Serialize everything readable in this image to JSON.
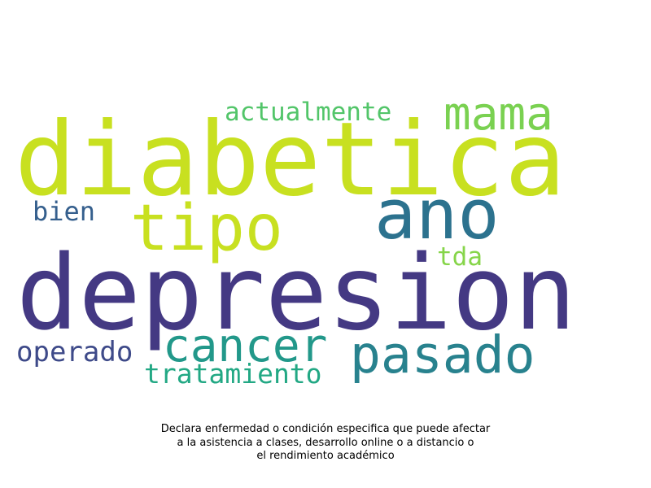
{
  "wordcloud": {
    "words": [
      {
        "text": "depresion",
        "color": "#443983"
      },
      {
        "text": "diabetica",
        "color": "#c8e020"
      },
      {
        "text": "ano",
        "color": "#2c728e"
      },
      {
        "text": "tipo",
        "color": "#c8e020"
      },
      {
        "text": "mama",
        "color": "#7ad151"
      },
      {
        "text": "pasado",
        "color": "#28828e"
      },
      {
        "text": "cancer",
        "color": "#22988a"
      },
      {
        "text": "actualmente",
        "color": "#52c569"
      },
      {
        "text": "tratamiento",
        "color": "#22a884"
      },
      {
        "text": "operado",
        "color": "#3e4a89"
      },
      {
        "text": "bien",
        "color": "#355f8d"
      },
      {
        "text": "tda",
        "color": "#86d549"
      }
    ]
  },
  "caption": {
    "line1": "Declara enfermedad o condición especifica que puede afectar",
    "line2": "a la asistencia a clases, desarrollo online o a distancio o",
    "line3": "el rendimiento académico"
  }
}
